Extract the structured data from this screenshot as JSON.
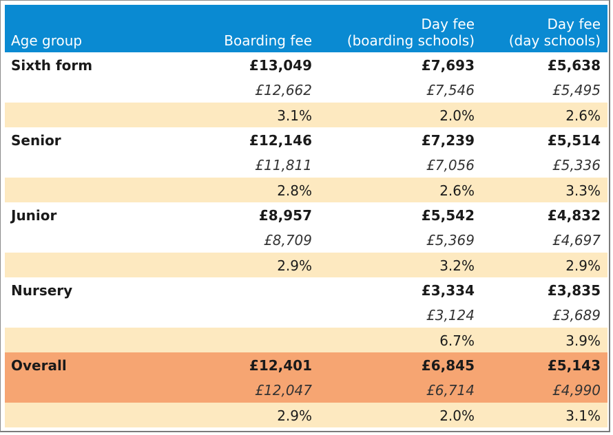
{
  "header": {
    "age_group": "Age group",
    "boarding_fee": "Boarding fee",
    "day_fee_boarding_l1": "Day fee",
    "day_fee_boarding_l2": "(boarding schools)",
    "day_fee_day_l1": "Day fee",
    "day_fee_day_l2": "(day schools)"
  },
  "colors": {
    "header": "#0a8ad2",
    "pct_row": "#fde9c0",
    "overall": "#f6a572"
  },
  "groups": [
    {
      "name": "Sixth form",
      "current": [
        "£13,049",
        "£7,693",
        "£5,638"
      ],
      "previous": [
        "£12,662",
        "£7,546",
        "£5,495"
      ],
      "change": [
        "3.1%",
        "2.0%",
        "2.6%"
      ]
    },
    {
      "name": "Senior",
      "current": [
        "£12,146",
        "£7,239",
        "£5,514"
      ],
      "previous": [
        "£11,811",
        "£7,056",
        "£5,336"
      ],
      "change": [
        "2.8%",
        "2.6%",
        "3.3%"
      ]
    },
    {
      "name": "Junior",
      "current": [
        "£8,957",
        "£5,542",
        "£4,832"
      ],
      "previous": [
        "£8,709",
        "£5,369",
        "£4,697"
      ],
      "change": [
        "2.9%",
        "3.2%",
        "2.9%"
      ]
    },
    {
      "name": "Nursery",
      "current": [
        "",
        "£3,334",
        "£3,835"
      ],
      "previous": [
        "",
        "£3,124",
        "£3,689"
      ],
      "change": [
        "",
        "6.7%",
        "3.9%"
      ]
    },
    {
      "name": "Overall",
      "current": [
        "£12,401",
        "£6,845",
        "£5,143"
      ],
      "previous": [
        "£12,047",
        "£6,714",
        "£4,990"
      ],
      "change": [
        "2.9%",
        "2.0%",
        "3.1%"
      ]
    }
  ]
}
